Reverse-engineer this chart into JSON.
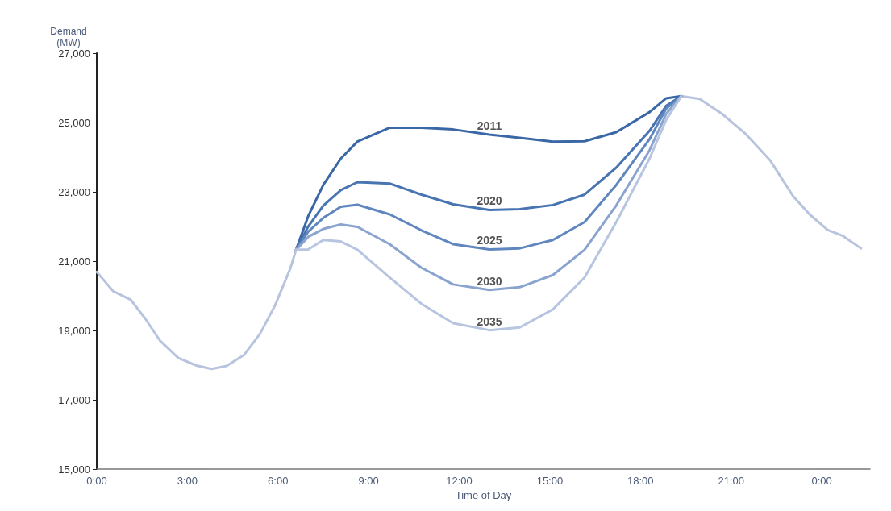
{
  "chart_data": {
    "type": "line",
    "xlabel": "Time of Day",
    "ylabel": "Demand\n(MW)",
    "xlim": [
      0,
      25.6
    ],
    "xticks": [
      {
        "value": 0,
        "label": "0:00"
      },
      {
        "value": 3,
        "label": "3:00"
      },
      {
        "value": 6,
        "label": "6:00"
      },
      {
        "value": 9,
        "label": "9:00"
      },
      {
        "value": 12,
        "label": "12:00"
      },
      {
        "value": 15,
        "label": "15:00"
      },
      {
        "value": 18,
        "label": "18:00"
      },
      {
        "value": 21,
        "label": "21:00"
      },
      {
        "value": 24,
        "label": "0:00"
      }
    ],
    "ylim": [
      15000,
      27000
    ],
    "yticks": [
      {
        "value": 15000,
        "label": "15,000"
      },
      {
        "value": 17000,
        "label": "17,000"
      },
      {
        "value": 19000,
        "label": "19,000"
      },
      {
        "value": 21000,
        "label": "21,000"
      },
      {
        "value": 23000,
        "label": "23,000"
      },
      {
        "value": 25000,
        "label": "25,000"
      },
      {
        "value": 27000,
        "label": "27,000"
      }
    ],
    "grid": false,
    "legend": false,
    "marker": "none",
    "line_style": "solid",
    "series": [
      {
        "color": "#b8c4de",
        "x": [
          0,
          0.55,
          1.12,
          1.6,
          2.1,
          2.7,
          3.3,
          3.8,
          4.3,
          4.87,
          5.4,
          5.9,
          6.4,
          6.6,
          13,
          19.35,
          19.96,
          20.7,
          21.46,
          22.3,
          23.05,
          23.6,
          24.2,
          24.7,
          25.3
        ],
        "values": [
          20690,
          20130,
          19890,
          19350,
          18700,
          18210,
          17990,
          17890,
          17980,
          18290,
          18900,
          19720,
          20770,
          21330,
          null,
          25760,
          25680,
          25250,
          24690,
          23900,
          22880,
          22350,
          21900,
          21730,
          21370
        ]
      },
      {
        "name": "2011",
        "color": "#3a67a5",
        "x": [
          6.6,
          7,
          7.5,
          8.08,
          8.63,
          9.7,
          10.75,
          11.8,
          13,
          14,
          15.1,
          16.15,
          17.2,
          18.3,
          18.85,
          19.35
        ],
        "values": [
          21330,
          22300,
          23200,
          23960,
          24450,
          24850,
          24850,
          24800,
          24650,
          24560,
          24450,
          24460,
          24720,
          25300,
          25700,
          25760
        ]
      },
      {
        "name": "2020",
        "color": "#4874b2",
        "x": [
          6.6,
          7,
          7.5,
          8.08,
          8.63,
          9.7,
          10.75,
          11.8,
          13,
          14,
          15.1,
          16.15,
          17.2,
          18.3,
          18.85,
          19.35
        ],
        "values": [
          21330,
          22000,
          22600,
          23050,
          23280,
          23240,
          22920,
          22640,
          22480,
          22500,
          22620,
          22920,
          23700,
          24760,
          25480,
          25760
        ]
      },
      {
        "name": "2025",
        "color": "#5f86be",
        "x": [
          6.6,
          7,
          7.5,
          8.08,
          8.63,
          9.7,
          10.75,
          11.8,
          13,
          14,
          15.1,
          16.15,
          17.2,
          18.3,
          18.85,
          19.35
        ],
        "values": [
          21330,
          21850,
          22250,
          22570,
          22630,
          22350,
          21890,
          21490,
          21340,
          21370,
          21610,
          22130,
          23200,
          24520,
          25400,
          25760
        ]
      },
      {
        "name": "2030",
        "color": "#8aa4cf",
        "x": [
          6.6,
          7,
          7.5,
          8.08,
          8.63,
          9.7,
          10.75,
          11.8,
          13,
          14,
          15.1,
          16.15,
          17.2,
          18.3,
          18.85,
          19.35
        ],
        "values": [
          21330,
          21700,
          21930,
          22060,
          21990,
          21490,
          20810,
          20330,
          20170,
          20250,
          20600,
          21330,
          22610,
          24200,
          25250,
          25760
        ]
      },
      {
        "name": "2035",
        "color": "#b7c5e1",
        "x": [
          6.6,
          7,
          7.5,
          8.08,
          8.63,
          9.7,
          10.75,
          11.8,
          13,
          14,
          15.1,
          16.15,
          17.2,
          18.3,
          18.85,
          19.35
        ],
        "values": [
          21330,
          21340,
          21610,
          21570,
          21330,
          20530,
          19770,
          19210,
          19010,
          19090,
          19610,
          20530,
          22130,
          23960,
          25080,
          25760
        ]
      }
    ]
  }
}
